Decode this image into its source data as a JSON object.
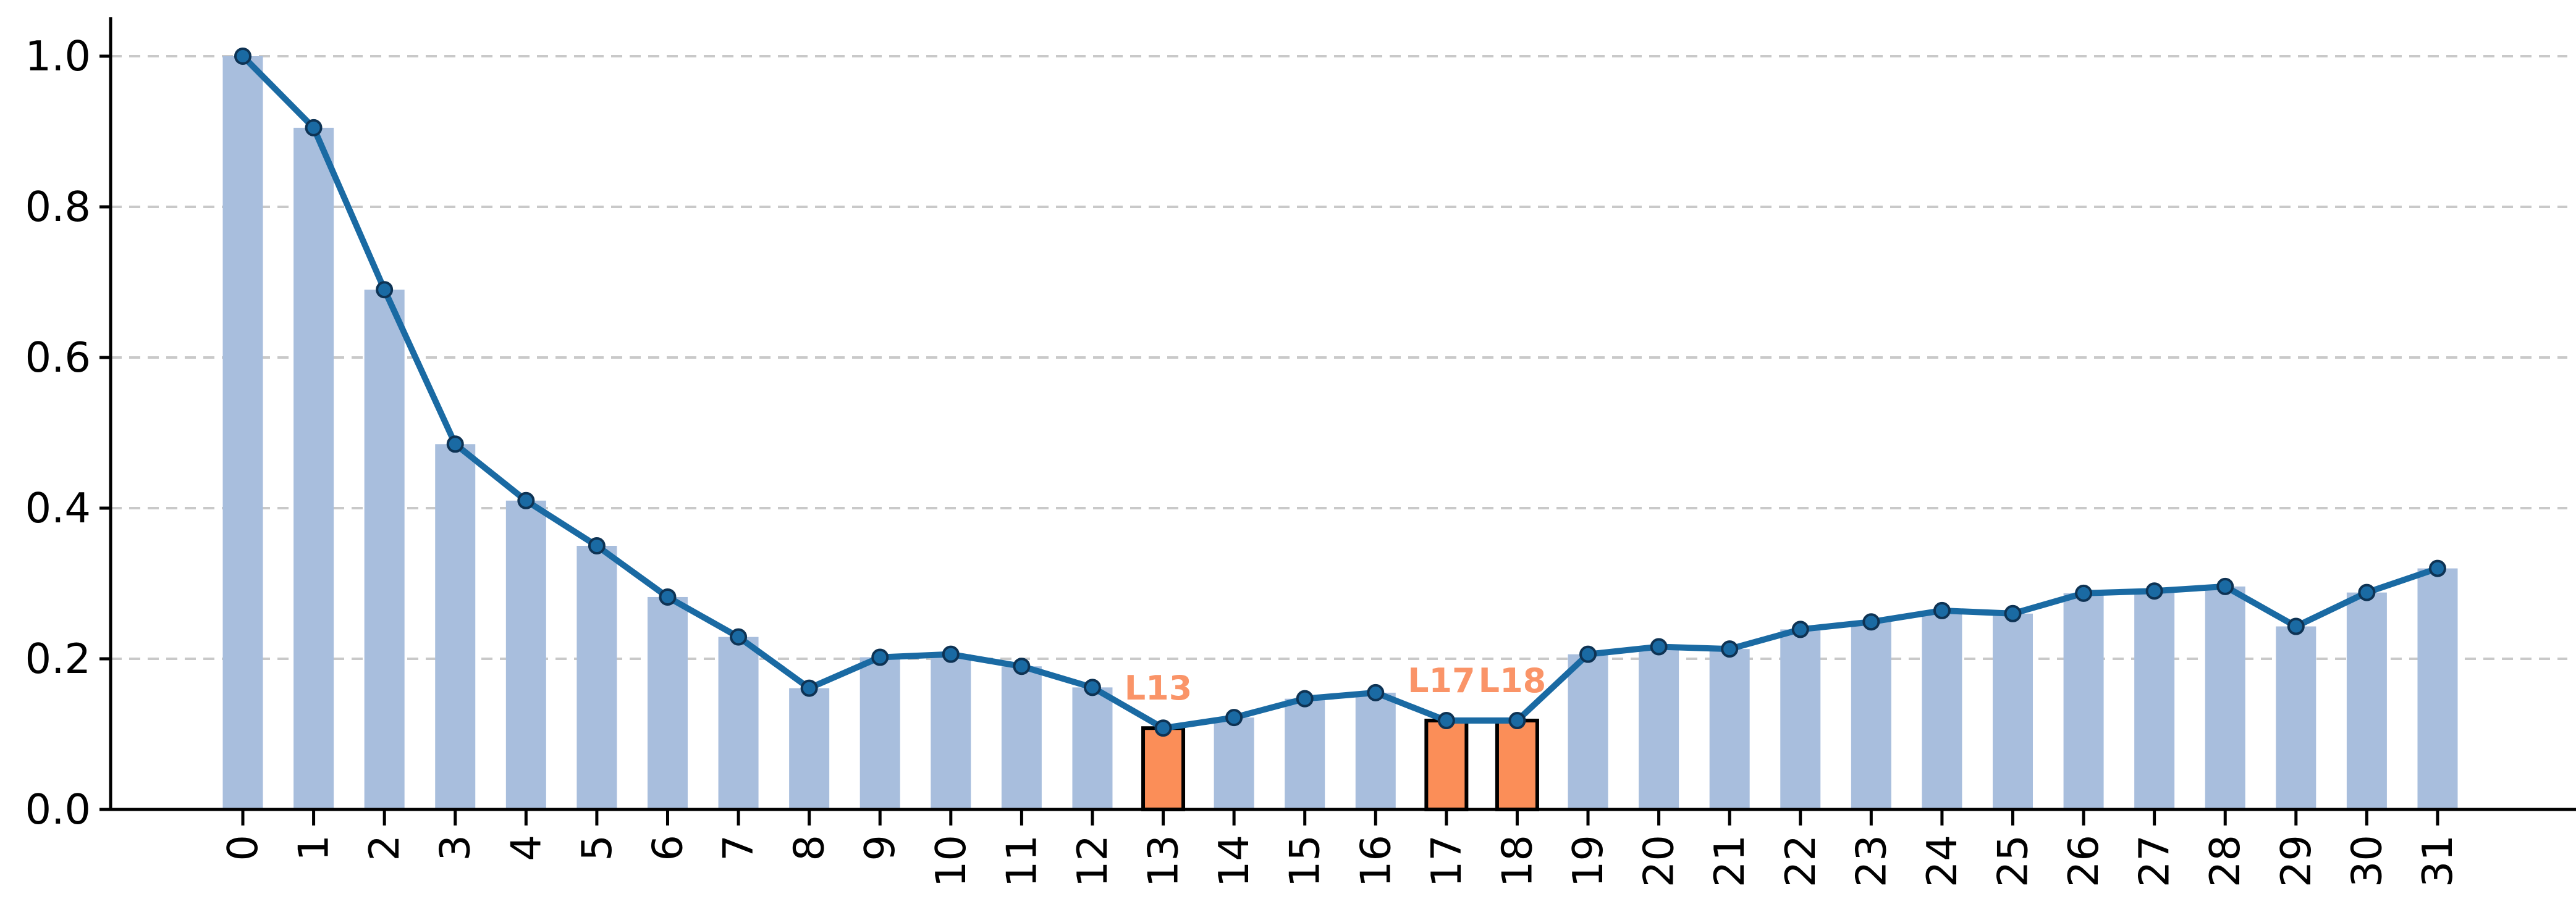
{
  "figure": {
    "background": "#ffffff"
  },
  "chart_data": {
    "type": "combo-bar-line",
    "title": "",
    "xlabel": "",
    "ylabel": "",
    "legend": "none",
    "grid": "horizontal-dashed",
    "categories": [
      "0",
      "1",
      "2",
      "3",
      "4",
      "5",
      "6",
      "7",
      "8",
      "9",
      "10",
      "11",
      "12",
      "13",
      "14",
      "15",
      "16",
      "17",
      "18",
      "19",
      "20",
      "21",
      "22",
      "23",
      "24",
      "25",
      "26",
      "27",
      "28",
      "29",
      "30",
      "31"
    ],
    "values": [
      1.0,
      0.905,
      0.69,
      0.485,
      0.41,
      0.35,
      0.282,
      0.229,
      0.161,
      0.202,
      0.206,
      0.19,
      0.162,
      0.108,
      0.122,
      0.147,
      0.155,
      0.118,
      0.118,
      0.206,
      0.216,
      0.213,
      0.239,
      0.249,
      0.264,
      0.26,
      0.287,
      0.29,
      0.296,
      0.243,
      0.288,
      0.32
    ],
    "line_values_same_as_bars": true,
    "highlighted": [
      {
        "index": 13,
        "label": "L13"
      },
      {
        "index": 17,
        "label": "L17"
      },
      {
        "index": 18,
        "label": "L18"
      }
    ],
    "yticks": [
      0.0,
      0.2,
      0.4,
      0.6,
      0.8,
      1.0
    ],
    "ytick_labels": [
      "0.0",
      "0.2",
      "0.4",
      "0.6",
      "0.8",
      "1.0"
    ],
    "ylim": [
      0.0,
      1.05
    ],
    "colors": {
      "bar": "#a8bedd",
      "bar_highlight": "#fb8e58",
      "bar_highlight_edge": "#000000",
      "line": "#1a6aa3",
      "marker": "#1a6aa3",
      "marker_edge": "#0e3354",
      "grid": "#c9c9c9",
      "axis": "#000000",
      "tick_label": "#000000",
      "annotation": "#fa9468"
    }
  }
}
